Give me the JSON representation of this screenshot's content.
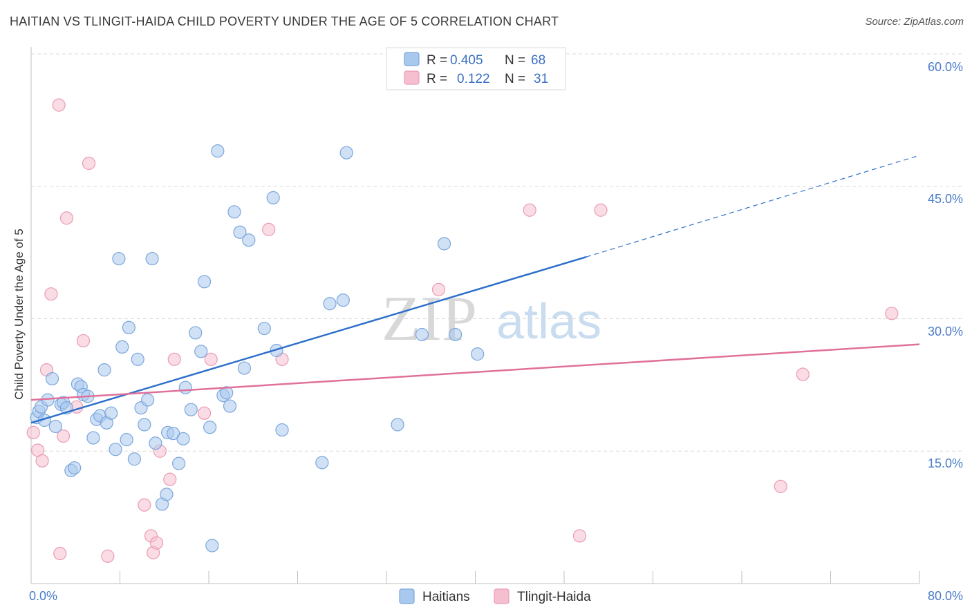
{
  "header": {
    "title": "HAITIAN VS TLINGIT-HAIDA CHILD POVERTY UNDER THE AGE OF 5 CORRELATION CHART",
    "source": "Source: ZipAtlas.com"
  },
  "watermark": {
    "zip": "ZIP",
    "atlas": "atlas"
  },
  "legend": {
    "rows": [
      {
        "r_label": "R =",
        "r_value": "0.405",
        "n_label": "N =",
        "n_value": "68"
      },
      {
        "r_label": "R =",
        "r_value": "0.122",
        "n_label": "N =",
        "n_value": "31"
      }
    ]
  },
  "bottom_legend": {
    "series1": "Haitians",
    "series2": "Tlingit-Haida"
  },
  "axis": {
    "x_min_label": "0.0%",
    "x_max_label": "80.0%",
    "y_ticks": [
      "15.0%",
      "30.0%",
      "45.0%",
      "60.0%"
    ]
  },
  "colors": {
    "blue_fill": "#a9c8ee",
    "blue_stroke": "#7aa6dc",
    "blue_line": "#2d6fcb",
    "pink_fill": "#f6bfd0",
    "pink_stroke": "#ea9bb3",
    "pink_line": "#e0709a",
    "grid": "#d9d9d9",
    "tick_label": "#4a7cc9"
  },
  "chart_data": {
    "type": "scatter",
    "title": "HAITIAN VS TLINGIT-HAIDA CHILD POVERTY UNDER THE AGE OF 5 CORRELATION CHART",
    "xlabel": "",
    "ylabel": "Child Poverty Under the Age of 5",
    "xlim": [
      0,
      80
    ],
    "ylim": [
      0,
      60
    ],
    "y_gridlines": [
      15,
      30,
      45,
      60
    ],
    "series": [
      {
        "name": "Haitians",
        "r": 0.405,
        "n": 68,
        "trend": {
          "x0": 0,
          "y0": 18.2,
          "x1": 50,
          "y1": 37.0,
          "dash_to_x": 80,
          "dash_to_y": 48.5
        },
        "points": [
          [
            0.5,
            18.8
          ],
          [
            0.7,
            19.5
          ],
          [
            0.9,
            20.0
          ],
          [
            1.2,
            18.5
          ],
          [
            1.5,
            20.8
          ],
          [
            1.9,
            23.2
          ],
          [
            2.2,
            17.8
          ],
          [
            2.7,
            20.3
          ],
          [
            2.9,
            20.5
          ],
          [
            3.2,
            19.9
          ],
          [
            3.6,
            12.8
          ],
          [
            3.9,
            13.1
          ],
          [
            4.2,
            22.6
          ],
          [
            4.5,
            22.3
          ],
          [
            4.7,
            21.4
          ],
          [
            5.1,
            21.2
          ],
          [
            5.6,
            16.5
          ],
          [
            5.9,
            18.6
          ],
          [
            6.2,
            19.0
          ],
          [
            6.6,
            24.2
          ],
          [
            6.8,
            18.2
          ],
          [
            7.2,
            19.3
          ],
          [
            7.6,
            15.2
          ],
          [
            7.9,
            36.8
          ],
          [
            8.2,
            26.8
          ],
          [
            8.6,
            16.3
          ],
          [
            8.8,
            29.0
          ],
          [
            9.3,
            14.1
          ],
          [
            9.6,
            25.4
          ],
          [
            9.9,
            19.9
          ],
          [
            10.2,
            18.0
          ],
          [
            10.5,
            20.8
          ],
          [
            10.9,
            36.8
          ],
          [
            11.2,
            15.9
          ],
          [
            11.8,
            9.0
          ],
          [
            12.2,
            10.1
          ],
          [
            12.3,
            17.1
          ],
          [
            12.8,
            17.0
          ],
          [
            13.3,
            13.6
          ],
          [
            13.7,
            16.4
          ],
          [
            13.9,
            22.2
          ],
          [
            14.4,
            19.7
          ],
          [
            14.8,
            28.4
          ],
          [
            15.3,
            26.3
          ],
          [
            15.6,
            34.2
          ],
          [
            16.1,
            17.7
          ],
          [
            16.3,
            4.3
          ],
          [
            16.8,
            49.0
          ],
          [
            17.3,
            21.3
          ],
          [
            17.6,
            21.6
          ],
          [
            17.9,
            20.1
          ],
          [
            18.3,
            42.1
          ],
          [
            18.8,
            39.8
          ],
          [
            19.2,
            24.4
          ],
          [
            19.6,
            38.9
          ],
          [
            21.0,
            28.9
          ],
          [
            21.8,
            43.7
          ],
          [
            22.1,
            26.4
          ],
          [
            22.6,
            17.4
          ],
          [
            26.2,
            13.7
          ],
          [
            26.9,
            31.7
          ],
          [
            28.1,
            32.1
          ],
          [
            28.4,
            48.8
          ],
          [
            33.0,
            18.0
          ],
          [
            35.2,
            28.2
          ],
          [
            37.2,
            38.5
          ],
          [
            38.2,
            28.2
          ],
          [
            40.2,
            26.0
          ]
        ]
      },
      {
        "name": "Tlingit-Haida",
        "r": 0.122,
        "n": 31,
        "trend": {
          "x0": 0,
          "y0": 20.8,
          "x1": 80,
          "y1": 27.1
        },
        "points": [
          [
            0.2,
            17.1
          ],
          [
            0.6,
            15.1
          ],
          [
            1.0,
            13.9
          ],
          [
            1.4,
            24.2
          ],
          [
            1.8,
            32.8
          ],
          [
            2.5,
            54.2
          ],
          [
            2.6,
            3.4
          ],
          [
            2.9,
            16.7
          ],
          [
            3.2,
            41.4
          ],
          [
            4.1,
            20.0
          ],
          [
            4.7,
            27.5
          ],
          [
            5.2,
            47.6
          ],
          [
            6.9,
            3.1
          ],
          [
            10.2,
            8.9
          ],
          [
            10.8,
            5.4
          ],
          [
            11.0,
            3.5
          ],
          [
            11.3,
            4.6
          ],
          [
            11.6,
            15.0
          ],
          [
            12.5,
            11.8
          ],
          [
            12.9,
            25.4
          ],
          [
            15.6,
            19.3
          ],
          [
            16.2,
            25.4
          ],
          [
            21.4,
            40.1
          ],
          [
            22.6,
            25.4
          ],
          [
            36.7,
            33.3
          ],
          [
            44.9,
            42.3
          ],
          [
            49.4,
            5.4
          ],
          [
            51.3,
            42.3
          ],
          [
            67.5,
            11.0
          ],
          [
            69.5,
            23.7
          ],
          [
            77.5,
            30.6
          ]
        ]
      }
    ]
  }
}
